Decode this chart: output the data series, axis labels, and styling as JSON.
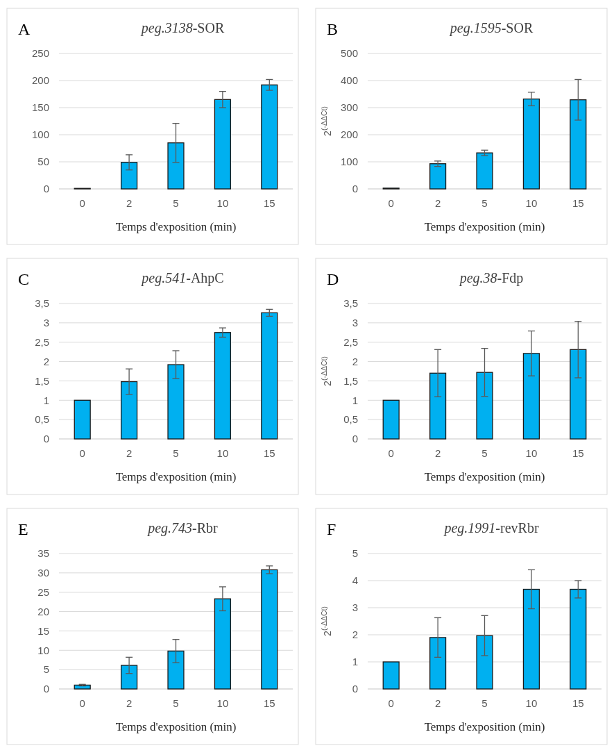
{
  "chart_data": [
    {
      "type": "bar",
      "title": "peg.3138-SOR",
      "xlabel": "Temps d'exposition (min)",
      "annotations": [
        "A"
      ],
      "categories": [
        "0",
        "2",
        "5",
        "10",
        "15"
      ],
      "values": [
        1,
        49,
        85,
        165,
        192
      ],
      "errors": [
        null,
        14,
        36,
        15,
        10
      ],
      "color": "#00b0f0",
      "ylim": [
        0,
        250
      ],
      "yticks": [
        0,
        50,
        100,
        150,
        200,
        250
      ],
      "grid": "y"
    },
    {
      "type": "bar",
      "title": "peg.1595-SOR",
      "xlabel": "Temps d'exposition (min)",
      "ylabel": "2$^{(-ΔΔCt)}$",
      "annotations": [
        "B"
      ],
      "categories": [
        "0",
        "2",
        "5",
        "10",
        "15"
      ],
      "values": [
        3,
        93,
        133,
        332,
        329
      ],
      "errors": [
        null,
        10,
        10,
        25,
        75
      ],
      "color": "#00b0f0",
      "ylim": [
        0,
        500
      ],
      "yticks": [
        0,
        100,
        200,
        300,
        400,
        500
      ],
      "grid": "y"
    },
    {
      "type": "bar",
      "title": "peg.541-AhpC",
      "xlabel": "Temps d'exposition (min)",
      "annotations": [
        "C"
      ],
      "categories": [
        "0",
        "2",
        "5",
        "10",
        "15"
      ],
      "values": [
        1,
        1.48,
        1.92,
        2.75,
        3.26
      ],
      "errors": [
        null,
        0.33,
        0.36,
        0.12,
        0.09
      ],
      "color": "#00b0f0",
      "ylim": [
        0,
        3.5
      ],
      "yticks": [
        0,
        {
          "value": 0.5,
          "label": "0,5"
        },
        1,
        {
          "value": 1.5,
          "label": "1,5"
        },
        2,
        {
          "value": 2.5,
          "label": "2,5"
        },
        3,
        {
          "value": 3.5,
          "label": "3,5"
        }
      ],
      "grid": "y"
    },
    {
      "type": "bar",
      "title": "peg.38-Fdp",
      "xlabel": "Temps d'exposition (min)",
      "ylabel": "2$^{(-ΔΔCt)}$",
      "annotations": [
        "D"
      ],
      "categories": [
        "0",
        "2",
        "5",
        "10",
        "15"
      ],
      "values": [
        1,
        1.7,
        1.72,
        2.21,
        2.31
      ],
      "errors": [
        null,
        0.61,
        0.62,
        0.58,
        0.73
      ],
      "color": "#00b0f0",
      "ylim": [
        0,
        3.5
      ],
      "yticks": [
        0,
        {
          "value": 0.5,
          "label": "0,5"
        },
        1,
        {
          "value": 1.5,
          "label": "1,5"
        },
        2,
        {
          "value": 2.5,
          "label": "2,5"
        },
        3,
        {
          "value": 3.5,
          "label": "3,5"
        }
      ],
      "grid": "y"
    },
    {
      "type": "bar",
      "title": "peg.743-Rbr",
      "xlabel": "Temps d'exposition (min)",
      "annotations": [
        "E"
      ],
      "categories": [
        "0",
        "2",
        "5",
        "10",
        "15"
      ],
      "values": [
        1,
        6.1,
        9.8,
        23.3,
        30.8
      ],
      "errors": [
        0.2,
        2.1,
        3,
        3.1,
        1
      ],
      "color": "#00b0f0",
      "ylim": [
        0,
        35
      ],
      "yticks": [
        0,
        5,
        10,
        15,
        20,
        25,
        30,
        35
      ],
      "grid": "y"
    },
    {
      "type": "bar",
      "title": "peg.1991-revRbr",
      "xlabel": "Temps d'exposition (min)",
      "ylabel": "2$^{(-ΔΔCt)}$",
      "annotations": [
        "F"
      ],
      "categories": [
        "0",
        "2",
        "5",
        "10",
        "15"
      ],
      "values": [
        1,
        1.9,
        1.97,
        3.68,
        3.68
      ],
      "errors": [
        null,
        0.73,
        0.74,
        0.72,
        0.32
      ],
      "color": "#00b0f0",
      "ylim": [
        0,
        5
      ],
      "yticks": [
        0,
        1,
        2,
        3,
        4,
        5
      ],
      "grid": "y"
    }
  ]
}
